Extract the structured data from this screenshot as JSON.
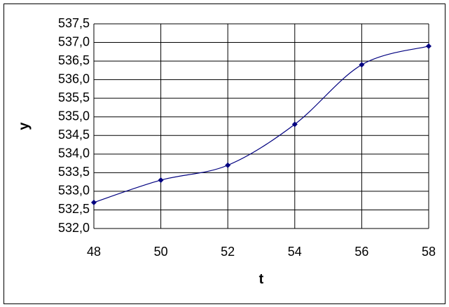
{
  "chart_data": {
    "type": "line",
    "x": [
      48,
      50,
      52,
      54,
      56,
      58
    ],
    "values": [
      532.7,
      533.3,
      533.7,
      534.8,
      536.4,
      536.9
    ],
    "color": "#000080",
    "xlabel": "t",
    "ylabel": "y",
    "xlim": [
      48,
      58
    ],
    "xticks": [
      48,
      50,
      52,
      54,
      56,
      58
    ],
    "ylim": [
      532,
      537.5
    ],
    "yticks": [
      {
        "value": 532,
        "label": "532,0"
      },
      {
        "value": 532.5,
        "label": "532,5"
      },
      {
        "value": 533,
        "label": "533,0"
      },
      {
        "value": 533.5,
        "label": "533,5"
      },
      {
        "value": 534,
        "label": "534,0"
      },
      {
        "value": 534.5,
        "label": "534,5"
      },
      {
        "value": 535,
        "label": "535,0"
      },
      {
        "value": 535.5,
        "label": "535,5"
      },
      {
        "value": 536,
        "label": "536,0"
      },
      {
        "value": 536.5,
        "label": "536,5"
      },
      {
        "value": 537,
        "label": "537,0"
      },
      {
        "value": 537.5,
        "label": "537,5"
      }
    ],
    "grid": true
  }
}
